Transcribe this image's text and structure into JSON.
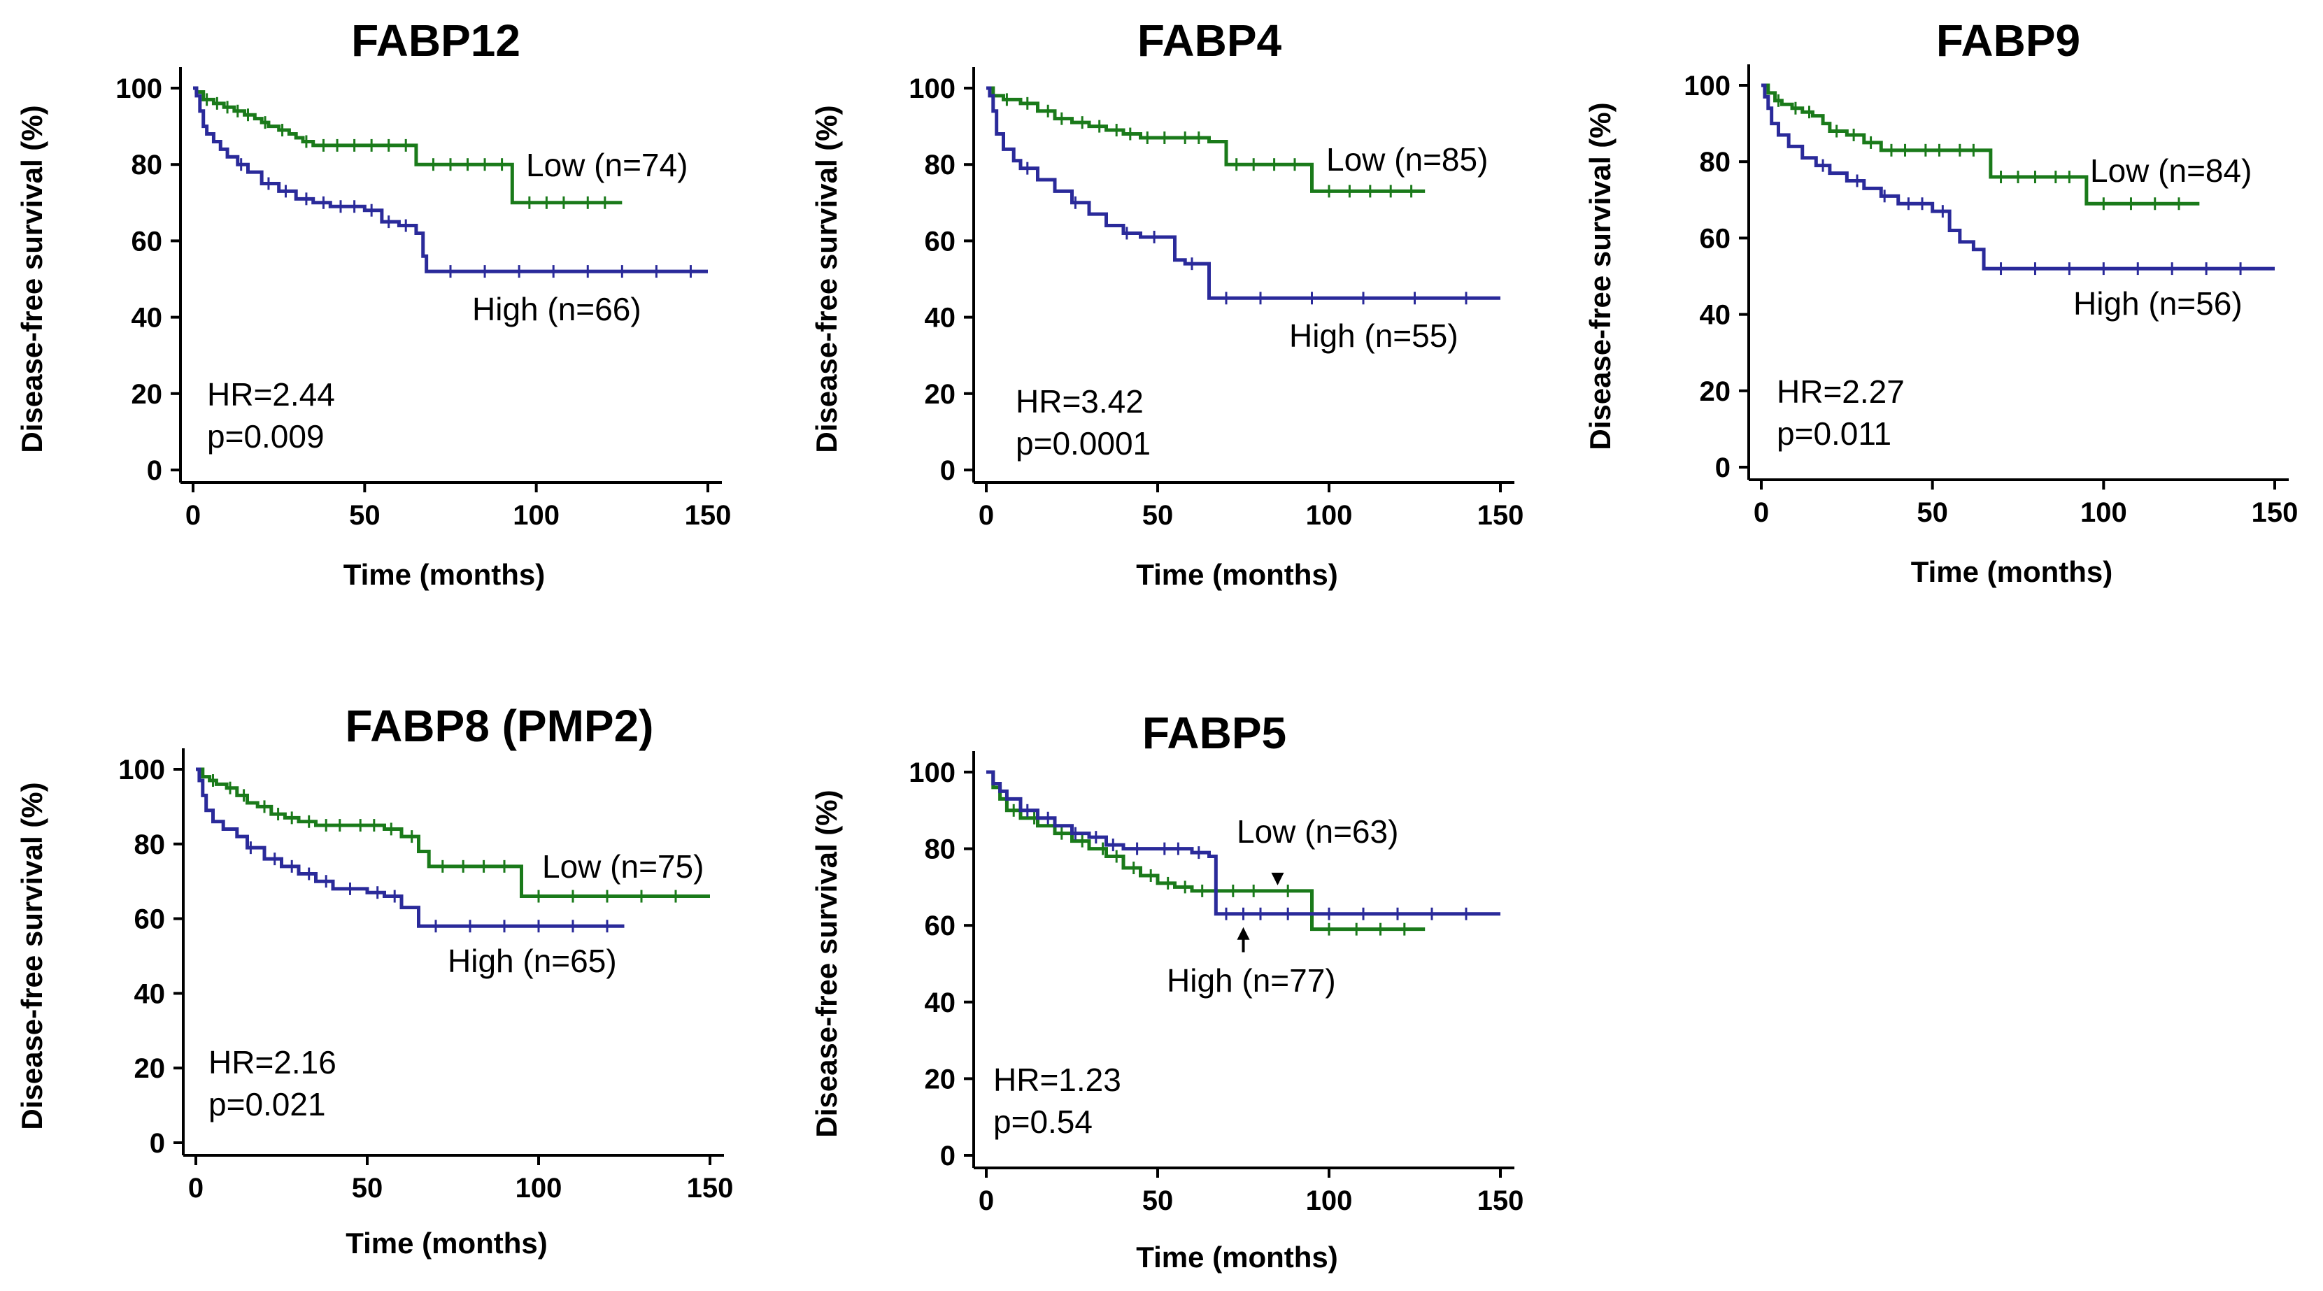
{
  "chart_data": [
    {
      "type": "line",
      "chart_kind": "kaplan-meier",
      "title": "FABP12",
      "xlabel": "Time (months)",
      "ylabel": "Disease-free survival (%)",
      "xlim": [
        0,
        150
      ],
      "ylim": [
        0,
        100
      ],
      "xticks": [
        "0",
        "50",
        "100",
        "150"
      ],
      "yticks": [
        "0",
        "20",
        "40",
        "60",
        "80",
        "100"
      ],
      "hr_text": "HR=2.44",
      "p_text": "p=0.009",
      "series": [
        {
          "name": "Low",
          "label": "Low (n=74)",
          "color": "#1a7a1a",
          "x": [
            0,
            1,
            3,
            6,
            9,
            12,
            15,
            18,
            20,
            22,
            25,
            28,
            30,
            32,
            35,
            40,
            45,
            50,
            55,
            60,
            65,
            67,
            93,
            94,
            125
          ],
          "y": [
            100,
            99,
            97,
            96,
            95,
            94,
            93,
            92,
            91,
            90,
            89,
            88,
            87,
            86,
            85,
            85,
            85,
            85,
            85,
            85,
            80,
            80,
            70,
            70,
            70
          ],
          "censor_x": [
            4,
            7,
            10,
            13,
            16,
            21,
            26,
            33,
            38,
            42,
            47,
            52,
            57,
            62,
            70,
            75,
            80,
            85,
            90,
            98,
            103,
            108,
            115,
            120
          ]
        },
        {
          "name": "High",
          "label": "High (n=66)",
          "color": "#2a2a9a",
          "x": [
            0,
            1,
            2,
            3,
            4,
            6,
            8,
            10,
            13,
            16,
            20,
            25,
            30,
            35,
            40,
            50,
            55,
            60,
            65,
            67,
            68,
            70,
            150
          ],
          "y": [
            100,
            98,
            94,
            90,
            88,
            86,
            84,
            82,
            80,
            78,
            75,
            73,
            71,
            70,
            69,
            68,
            65,
            64,
            62,
            56,
            52,
            52,
            52
          ],
          "censor_x": [
            14,
            22,
            27,
            33,
            38,
            43,
            47,
            52,
            57,
            62,
            75,
            85,
            95,
            105,
            115,
            125,
            135,
            145
          ]
        }
      ]
    },
    {
      "type": "line",
      "chart_kind": "kaplan-meier",
      "title": "FABP4",
      "xlabel": "Time (months)",
      "ylabel": "Disease-free survival (%)",
      "xlim": [
        0,
        150
      ],
      "ylim": [
        0,
        100
      ],
      "xticks": [
        "0",
        "50",
        "100",
        "150"
      ],
      "yticks": [
        "0",
        "20",
        "40",
        "60",
        "80",
        "100"
      ],
      "hr_text": "HR=3.42",
      "p_text": "p=0.0001",
      "series": [
        {
          "name": "Low",
          "label": "Low (n=85)",
          "color": "#1a7a1a",
          "x": [
            0,
            2,
            5,
            10,
            15,
            20,
            25,
            30,
            35,
            40,
            45,
            55,
            65,
            70,
            93,
            95,
            128
          ],
          "y": [
            100,
            98,
            97,
            96,
            94,
            92,
            91,
            90,
            89,
            88,
            87,
            87,
            86,
            80,
            80,
            73,
            73
          ],
          "censor_x": [
            6,
            12,
            18,
            22,
            28,
            33,
            38,
            42,
            47,
            52,
            58,
            62,
            73,
            78,
            84,
            90,
            100,
            106,
            112,
            118,
            124
          ]
        },
        {
          "name": "High",
          "label": "High (n=55)",
          "color": "#2a2a9a",
          "x": [
            0,
            1,
            2,
            3,
            5,
            8,
            10,
            15,
            20,
            25,
            30,
            35,
            40,
            45,
            55,
            58,
            65,
            150
          ],
          "y": [
            100,
            98,
            94,
            88,
            84,
            81,
            79,
            76,
            73,
            70,
            67,
            64,
            62,
            61,
            55,
            54,
            45,
            45
          ],
          "censor_x": [
            12,
            26,
            41,
            49,
            60,
            70,
            80,
            95,
            110,
            125,
            140
          ]
        }
      ]
    },
    {
      "type": "line",
      "chart_kind": "kaplan-meier",
      "title": "FABP9",
      "xlabel": "Time (months)",
      "ylabel": "Disease-free survival (%)",
      "xlim": [
        0,
        150
      ],
      "ylim": [
        0,
        100
      ],
      "xticks": [
        "0",
        "50",
        "100",
        "150"
      ],
      "yticks": [
        "0",
        "20",
        "40",
        "60",
        "80",
        "100"
      ],
      "hr_text": "HR=2.27",
      "p_text": "p=0.011",
      "series": [
        {
          "name": "Low",
          "label": "Low (n=84)",
          "color": "#1a7a1a",
          "x": [
            0,
            2,
            4,
            6,
            9,
            12,
            15,
            18,
            20,
            25,
            30,
            35,
            45,
            55,
            65,
            67,
            93,
            95,
            128
          ],
          "y": [
            100,
            98,
            96,
            95,
            94,
            93,
            92,
            90,
            88,
            87,
            85,
            83,
            83,
            83,
            83,
            76,
            76,
            69,
            69
          ],
          "censor_x": [
            5,
            10,
            14,
            22,
            27,
            32,
            38,
            42,
            48,
            52,
            58,
            62,
            70,
            75,
            80,
            86,
            90,
            100,
            108,
            115,
            122
          ]
        },
        {
          "name": "High",
          "label": "High (n=56)",
          "color": "#2a2a9a",
          "x": [
            0,
            1,
            2,
            3,
            5,
            8,
            12,
            16,
            20,
            25,
            30,
            35,
            40,
            50,
            55,
            58,
            62,
            65,
            150
          ],
          "y": [
            100,
            97,
            94,
            90,
            87,
            84,
            81,
            79,
            77,
            75,
            73,
            71,
            69,
            67,
            62,
            59,
            57,
            52,
            52
          ],
          "censor_x": [
            18,
            28,
            36,
            43,
            47,
            53,
            70,
            80,
            90,
            100,
            110,
            120,
            130,
            140
          ]
        }
      ]
    },
    {
      "type": "line",
      "chart_kind": "kaplan-meier",
      "title": "FABP8 (PMP2)",
      "xlabel": "Time (months)",
      "ylabel": "Disease-free survival (%)",
      "xlim": [
        0,
        150
      ],
      "ylim": [
        0,
        100
      ],
      "xticks": [
        "0",
        "50",
        "100",
        "150"
      ],
      "yticks": [
        "0",
        "20",
        "40",
        "60",
        "80",
        "100"
      ],
      "hr_text": "HR=2.16",
      "p_text": "p=0.021",
      "series": [
        {
          "name": "Low",
          "label": "Low (n=75)",
          "color": "#1a7a1a",
          "x": [
            0,
            2,
            4,
            6,
            9,
            12,
            15,
            18,
            22,
            26,
            30,
            35,
            45,
            55,
            60,
            65,
            68,
            93,
            95,
            150
          ],
          "y": [
            100,
            98,
            97,
            96,
            95,
            93,
            91,
            90,
            88,
            87,
            86,
            85,
            85,
            84,
            82,
            78,
            74,
            74,
            66,
            66
          ],
          "censor_x": [
            5,
            10,
            14,
            20,
            24,
            28,
            33,
            38,
            42,
            48,
            52,
            57,
            63,
            72,
            78,
            84,
            90,
            100,
            110,
            120,
            130,
            140
          ]
        },
        {
          "name": "High",
          "label": "High (n=65)",
          "color": "#2a2a9a",
          "x": [
            0,
            1,
            2,
            3,
            5,
            8,
            12,
            15,
            20,
            25,
            30,
            35,
            40,
            50,
            55,
            60,
            65,
            125
          ],
          "y": [
            100,
            97,
            93,
            89,
            86,
            84,
            82,
            79,
            76,
            74,
            72,
            70,
            68,
            67,
            66,
            63,
            58,
            58
          ],
          "censor_x": [
            16,
            23,
            28,
            33,
            38,
            45,
            53,
            58,
            70,
            80,
            90,
            100,
            110,
            120
          ]
        }
      ]
    },
    {
      "type": "line",
      "chart_kind": "kaplan-meier",
      "title": "FABP5",
      "xlabel": "Time (months)",
      "ylabel": "Disease-free survival (%)",
      "xlim": [
        0,
        150
      ],
      "ylim": [
        0,
        100
      ],
      "xticks": [
        "0",
        "50",
        "100",
        "150"
      ],
      "yticks": [
        "0",
        "20",
        "40",
        "60",
        "80",
        "100"
      ],
      "hr_text": "HR=1.23",
      "p_text": "p=0.54",
      "annotations": [
        "Low (n=63) arrow pointing down at ~85 months",
        "High (n=77) arrow pointing up at ~75 months"
      ],
      "series": [
        {
          "name": "Low",
          "label": "Low (n=63)",
          "color": "#1a7a1a",
          "x": [
            0,
            2,
            4,
            6,
            10,
            15,
            20,
            25,
            30,
            35,
            40,
            45,
            50,
            55,
            60,
            68,
            93,
            95,
            128
          ],
          "y": [
            100,
            96,
            93,
            90,
            88,
            86,
            84,
            82,
            80,
            78,
            75,
            73,
            71,
            70,
            69,
            69,
            69,
            59,
            59
          ],
          "censor_x": [
            8,
            14,
            22,
            28,
            34,
            38,
            43,
            48,
            53,
            58,
            63,
            72,
            78,
            88,
            100,
            108,
            115,
            122
          ]
        },
        {
          "name": "High",
          "label": "High (n=77)",
          "color": "#2a2a9a",
          "x": [
            0,
            2,
            4,
            6,
            10,
            15,
            20,
            25,
            30,
            35,
            40,
            50,
            60,
            65,
            67,
            93,
            94,
            150
          ],
          "y": [
            100,
            97,
            95,
            93,
            90,
            88,
            86,
            84,
            83,
            81,
            80,
            80,
            79,
            78,
            63,
            63,
            63,
            63
          ],
          "censor_x": [
            12,
            18,
            26,
            32,
            37,
            44,
            52,
            56,
            62,
            70,
            75,
            80,
            88,
            100,
            110,
            120,
            130,
            140
          ]
        }
      ]
    }
  ]
}
